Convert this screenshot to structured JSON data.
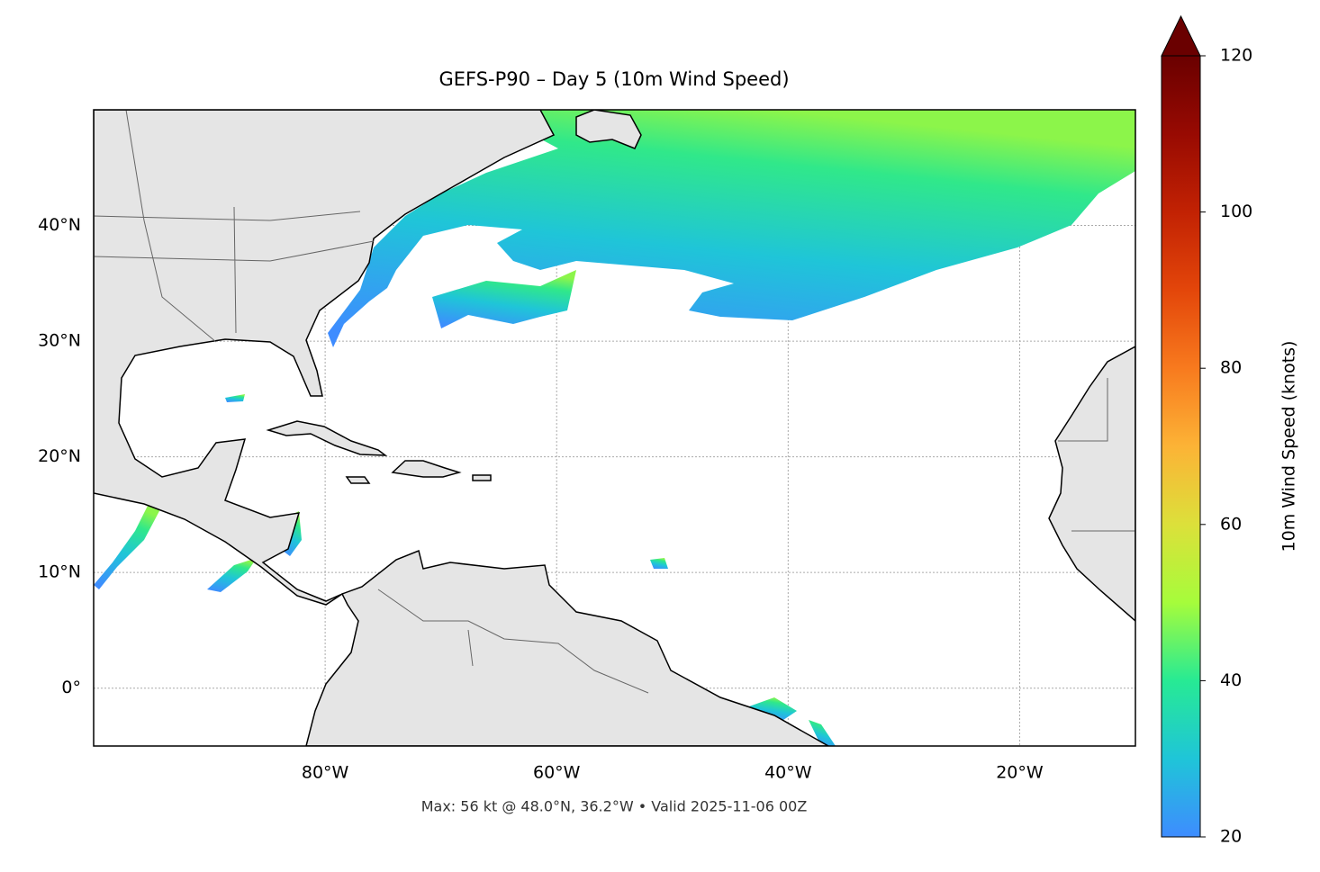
{
  "chart_data": {
    "type": "map",
    "title": "GEFS-P90 – Day 5 (10m Wind Speed)",
    "footer": "Max: 56 kt @ 48.0°N, 36.2°W • Valid 2025-11-06 00Z",
    "xlim": [
      -100,
      -10
    ],
    "ylim": [
      -5,
      50
    ],
    "xticks": [
      {
        "value": -80,
        "label": "80°W"
      },
      {
        "value": -60,
        "label": "60°W"
      },
      {
        "value": -40,
        "label": "40°W"
      },
      {
        "value": -20,
        "label": "20°W"
      }
    ],
    "yticks": [
      {
        "value": 0,
        "label": "0°"
      },
      {
        "value": 10,
        "label": "10°N"
      },
      {
        "value": 20,
        "label": "20°N"
      },
      {
        "value": 30,
        "label": "30°N"
      },
      {
        "value": 40,
        "label": "40°N"
      }
    ],
    "grid": true,
    "colorbar": {
      "label": "10m Wind Speed (knots)",
      "lim": [
        20,
        120
      ],
      "ticks": [
        20,
        40,
        60,
        80,
        100,
        120
      ],
      "colors": [
        "#3e8cff",
        "#1fc5d8",
        "#27ea94",
        "#a6fc3b",
        "#dce03a",
        "#fcb336",
        "#f87a1e",
        "#e3460a",
        "#c22203",
        "#980a02",
        "#6a0000"
      ]
    }
  }
}
